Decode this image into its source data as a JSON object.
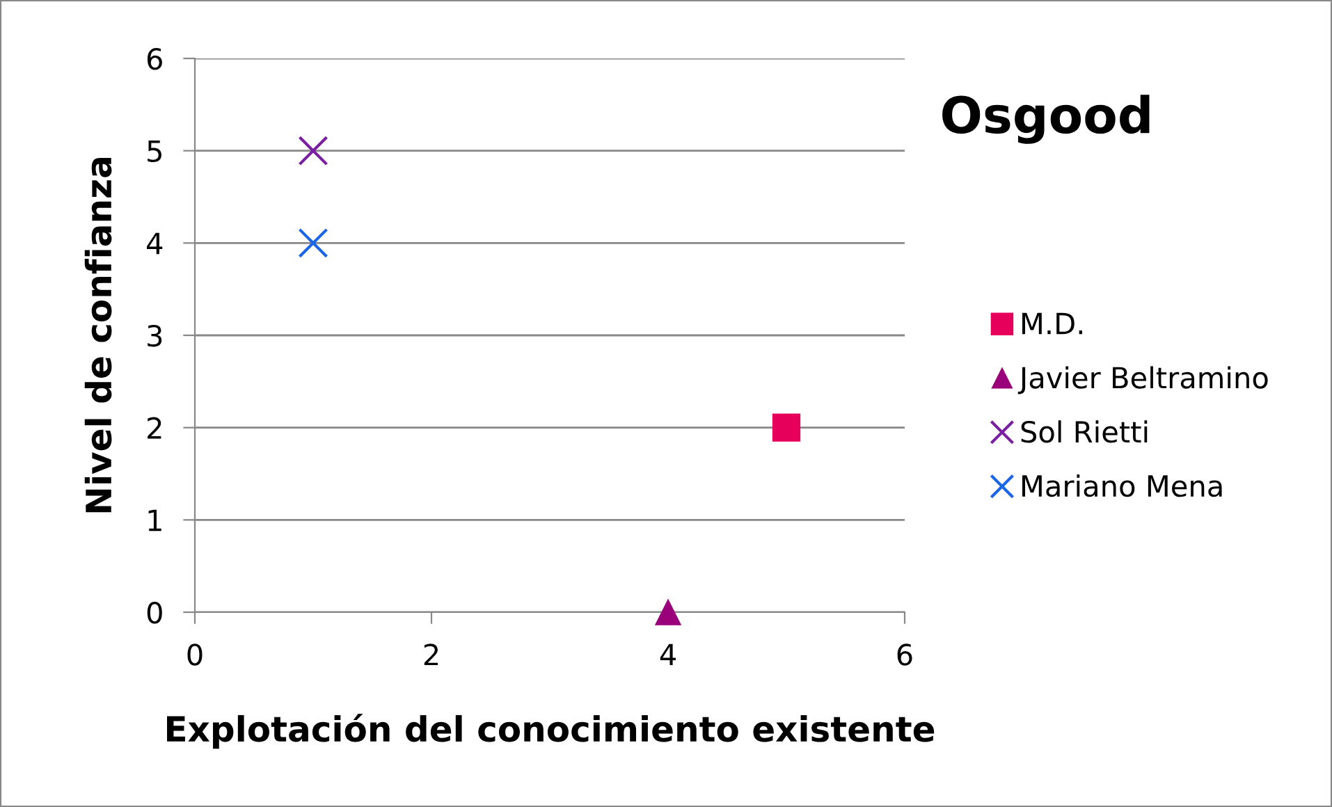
{
  "chart_data": {
    "type": "scatter",
    "xlabel": "Explotación del conocimiento existente",
    "ylabel": "Nivel de confianza",
    "annotations": [
      "Osgood"
    ],
    "series": [
      {
        "name": "M.D.",
        "color": "#e6005c",
        "marker": "square",
        "x": [
          5
        ],
        "values": [
          2
        ]
      },
      {
        "name": "Javier Beltramino",
        "color": "#99007a",
        "marker": "triangle",
        "x": [
          4
        ],
        "values": [
          0
        ]
      },
      {
        "name": "Sol Rietti",
        "color": "#7a1fa2",
        "marker": "cross",
        "x": [
          1
        ],
        "values": [
          5
        ]
      },
      {
        "name": "Mariano Mena",
        "color": "#1a66e6",
        "marker": "cross",
        "x": [
          1
        ],
        "values": [
          4
        ]
      }
    ],
    "xlim": [
      0,
      6
    ],
    "xticks": [
      0,
      2,
      4,
      6
    ],
    "ylim": [
      0,
      6
    ],
    "yticks": [
      0,
      1,
      2,
      3,
      4,
      5,
      6
    ],
    "grid": "y",
    "legend": "right"
  }
}
